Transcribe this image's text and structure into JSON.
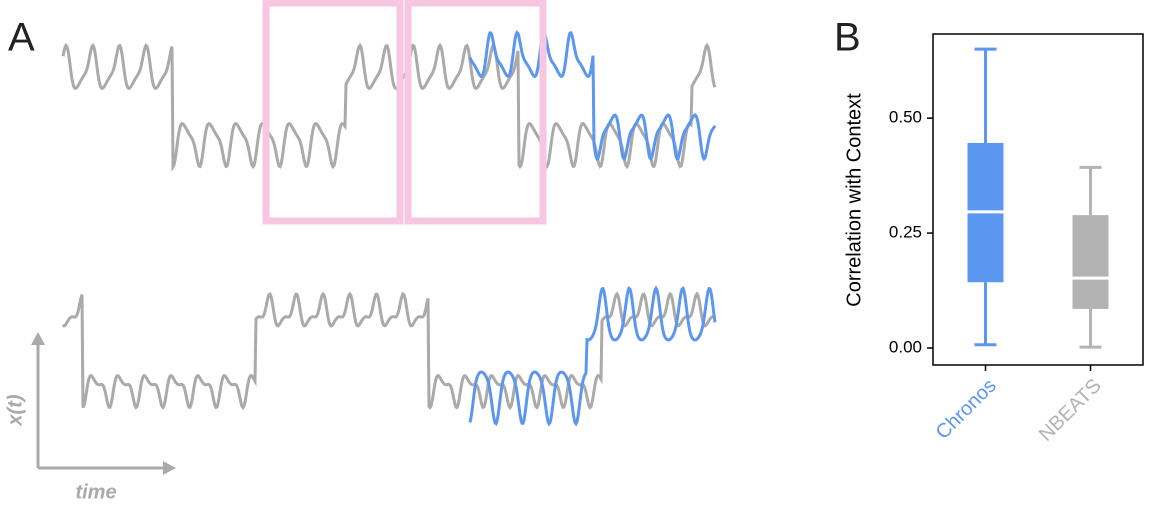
{
  "panel_a": {
    "label": "A",
    "y_label": "x(t)",
    "x_label": "time"
  },
  "chart_data": {
    "type": "box",
    "label": "B",
    "y_label": "Correlation with Context",
    "categories": [
      "Chronos",
      "NBEATS"
    ],
    "series": [
      {
        "name": "Chronos",
        "color": "#5b97f0",
        "whislo": 0.007,
        "q1": 0.143,
        "med": 0.296,
        "q3": 0.446,
        "whishi": 0.65
      },
      {
        "name": "NBEATS",
        "color": "#b3b3b3",
        "whislo": 0.002,
        "q1": 0.085,
        "med": 0.152,
        "q3": 0.289,
        "whishi": 0.393
      }
    ],
    "ylim": [
      -0.037,
      0.683
    ],
    "yticks": [
      {
        "value": 0,
        "label": "0.00"
      },
      {
        "value": 0.25,
        "label": "0.25"
      },
      {
        "value": 0.5,
        "label": "0.50"
      }
    ]
  }
}
